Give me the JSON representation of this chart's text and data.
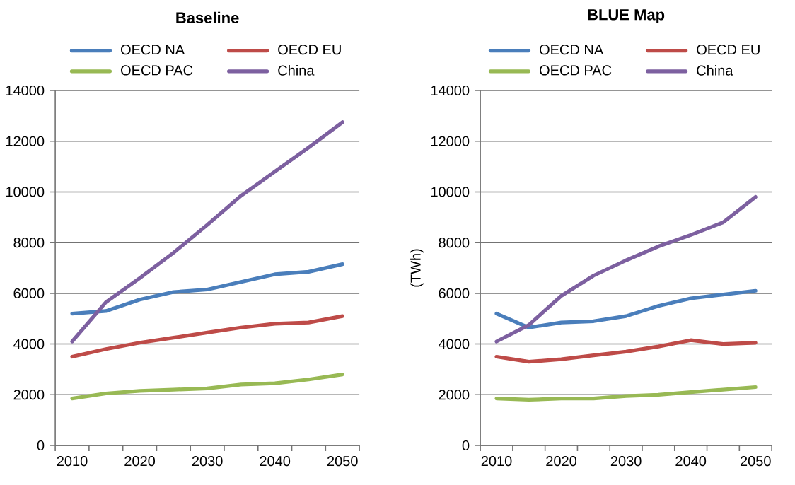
{
  "chart_data": [
    {
      "type": "line",
      "title": "Baseline",
      "categories": [
        "2010",
        null,
        "2020",
        null,
        "2030",
        null,
        "2040",
        null,
        "2050"
      ],
      "ylim": [
        0,
        14000
      ],
      "yticks": [
        0,
        2000,
        4000,
        6000,
        8000,
        10000,
        12000,
        14000
      ],
      "grid": "y",
      "legend": "top",
      "series": [
        {
          "name": "OECD NA",
          "color": "#4a7ebb",
          "values": [
            5200,
            5300,
            5750,
            6050,
            6150,
            6450,
            6750,
            6850,
            7150
          ]
        },
        {
          "name": "OECD EU",
          "color": "#be4b48",
          "values": [
            3500,
            3800,
            4050,
            4250,
            4450,
            4650,
            4800,
            4850,
            5100
          ]
        },
        {
          "name": "OECD PAC",
          "color": "#98b954",
          "values": [
            1850,
            2050,
            2150,
            2200,
            2250,
            2400,
            2450,
            2600,
            2800
          ]
        },
        {
          "name": "China",
          "color": "#7d60a0",
          "values": [
            4100,
            5650,
            6600,
            7600,
            8700,
            9850,
            10800,
            11750,
            12750
          ]
        }
      ]
    },
    {
      "type": "line",
      "title": "BLUE Map",
      "ylabel": "(TWh)",
      "categories": [
        "2010",
        null,
        "2020",
        null,
        "2030",
        null,
        "2040",
        null,
        "2050"
      ],
      "ylim": [
        0,
        14000
      ],
      "yticks": [
        0,
        2000,
        4000,
        6000,
        8000,
        10000,
        12000,
        14000
      ],
      "grid": "y",
      "legend": "top",
      "series": [
        {
          "name": "OECD NA",
          "color": "#4a7ebb",
          "values": [
            5200,
            4650,
            4850,
            4900,
            5100,
            5500,
            5800,
            5950,
            6100
          ]
        },
        {
          "name": "OECD EU",
          "color": "#be4b48",
          "values": [
            3500,
            3300,
            3400,
            3550,
            3700,
            3900,
            4150,
            4000,
            4050
          ]
        },
        {
          "name": "OECD PAC",
          "color": "#98b954",
          "values": [
            1850,
            1800,
            1850,
            1850,
            1950,
            2000,
            2100,
            2200,
            2300
          ]
        },
        {
          "name": "China",
          "color": "#7d60a0",
          "values": [
            4100,
            4750,
            5900,
            6700,
            7300,
            7850,
            8300,
            8800,
            9800
          ]
        }
      ]
    }
  ]
}
